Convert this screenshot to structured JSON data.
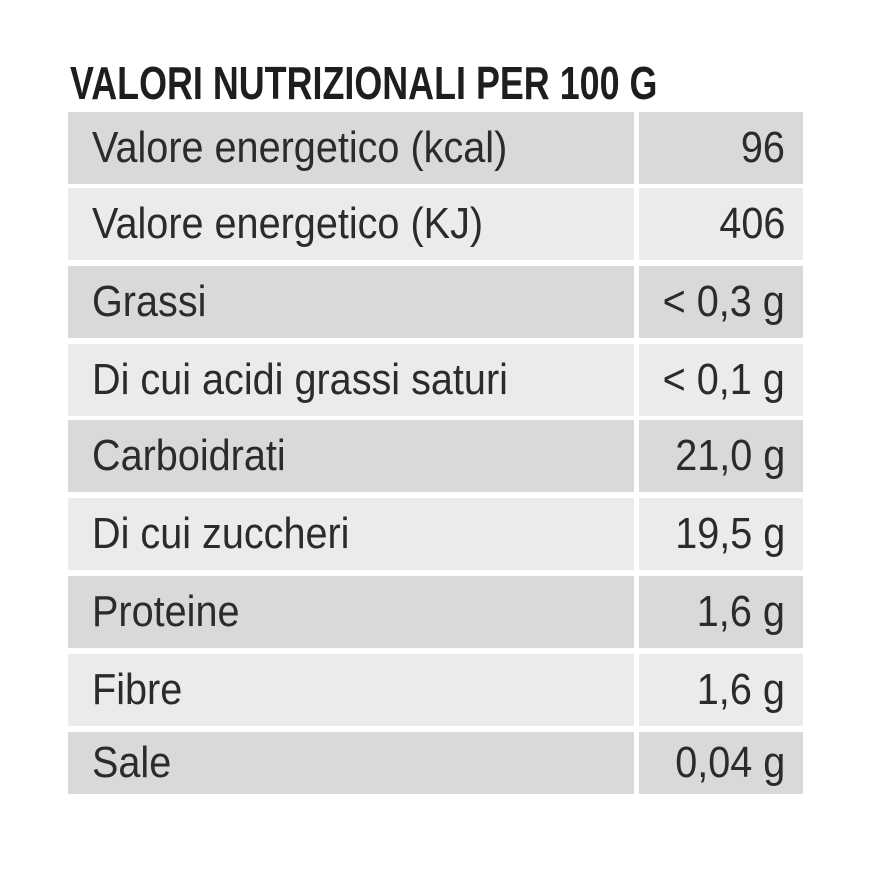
{
  "title": "VALORI NUTRIZIONALI PER 100 G",
  "table": {
    "rows": [
      [
        "Valore energetico (kcal)",
        "96"
      ],
      [
        "Valore energetico (KJ)",
        "406"
      ],
      [
        "Grassi",
        "< 0,3 g"
      ],
      [
        "Di cui acidi grassi saturi",
        "< 0,1 g"
      ],
      [
        "Carboidrati",
        "21,0 g"
      ],
      [
        "Di cui zuccheri",
        "19,5 g"
      ],
      [
        "Proteine",
        "1,6 g"
      ],
      [
        "Fibre",
        "1,6 g"
      ],
      [
        "Sale",
        "0,04 g"
      ]
    ]
  }
}
